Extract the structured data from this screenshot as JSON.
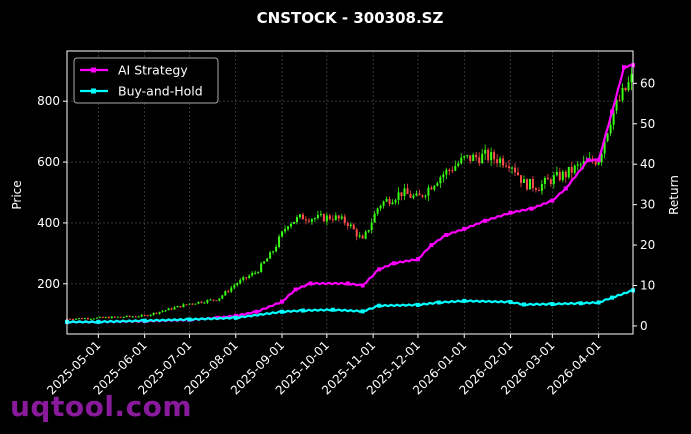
{
  "chart_data": {
    "type": "line",
    "title": "CNSTOCK - 300308.SZ",
    "ylabel_left": "Price",
    "ylabel_right": "Return",
    "x_ticks": [
      "2025-05-01",
      "2025-06-01",
      "2025-07-01",
      "2025-08-01",
      "2025-09-01",
      "2025-10-01",
      "2025-11-01",
      "2025-12-01",
      "2026-01-01",
      "2026-02-01",
      "2026-03-01",
      "2026-04-01"
    ],
    "y_left_ticks": [
      200,
      400,
      600,
      800
    ],
    "y_right_ticks": [
      0,
      10,
      20,
      30,
      40,
      50,
      60
    ],
    "xlim": [
      "2025-04-10",
      "2026-04-24"
    ],
    "ylim_left": [
      35,
      965
    ],
    "ylim_right": [
      -2,
      68
    ],
    "grid": true,
    "legend_position": "top-left",
    "candlestick": {
      "up_color": "#39ff14",
      "down_color": "#ff4d4d",
      "closes": [
        [
          "2025-04-10",
          85
        ],
        [
          "2025-05-01",
          88
        ],
        [
          "2025-05-20",
          92
        ],
        [
          "2025-06-01",
          95
        ],
        [
          "2025-06-20",
          120
        ],
        [
          "2025-07-01",
          135
        ],
        [
          "2025-07-20",
          150
        ],
        [
          "2025-08-01",
          200
        ],
        [
          "2025-08-15",
          240
        ],
        [
          "2025-08-25",
          300
        ],
        [
          "2025-09-05",
          400
        ],
        [
          "2025-09-15",
          420
        ],
        [
          "2025-09-25",
          415
        ],
        [
          "2025-10-05",
          420
        ],
        [
          "2025-10-15",
          400
        ],
        [
          "2025-10-25",
          340
        ],
        [
          "2025-11-05",
          460
        ],
        [
          "2025-11-20",
          500
        ],
        [
          "2025-12-01",
          480
        ],
        [
          "2025-12-15",
          550
        ],
        [
          "2026-01-01",
          610
        ],
        [
          "2026-01-15",
          620
        ],
        [
          "2026-02-01",
          600
        ],
        [
          "2026-02-10",
          530
        ],
        [
          "2026-02-20",
          520
        ],
        [
          "2026-03-01",
          545
        ],
        [
          "2026-03-10",
          560
        ],
        [
          "2026-03-20",
          590
        ],
        [
          "2026-04-01",
          610
        ],
        [
          "2026-04-10",
          760
        ],
        [
          "2026-04-24",
          880
        ]
      ]
    },
    "series": [
      {
        "name": "AI Strategy",
        "color": "#ff00ff",
        "points": [
          [
            "2025-04-10",
            1.0
          ],
          [
            "2025-05-01",
            1.0
          ],
          [
            "2025-06-01",
            1.2
          ],
          [
            "2025-07-01",
            1.5
          ],
          [
            "2025-07-20",
            2.0
          ],
          [
            "2025-08-01",
            2.5
          ],
          [
            "2025-08-15",
            3.5
          ],
          [
            "2025-09-01",
            6.0
          ],
          [
            "2025-09-10",
            9.0
          ],
          [
            "2025-09-20",
            10.5
          ],
          [
            "2025-10-15",
            10.5
          ],
          [
            "2025-10-25",
            10.0
          ],
          [
            "2025-11-05",
            14.0
          ],
          [
            "2025-11-15",
            15.5
          ],
          [
            "2025-12-01",
            16.5
          ],
          [
            "2025-12-10",
            20.0
          ],
          [
            "2025-12-20",
            22.5
          ],
          [
            "2026-01-01",
            24.0
          ],
          [
            "2026-01-15",
            26.0
          ],
          [
            "2026-02-01",
            28.0
          ],
          [
            "2026-02-15",
            29.0
          ],
          [
            "2026-03-01",
            31.0
          ],
          [
            "2026-03-10",
            34.0
          ],
          [
            "2026-03-25",
            41.0
          ],
          [
            "2026-04-01",
            41.0
          ],
          [
            "2026-04-10",
            53.0
          ],
          [
            "2026-04-18",
            64.0
          ],
          [
            "2026-04-24",
            64.5
          ]
        ]
      },
      {
        "name": "Buy-and-Hold",
        "color": "#00ffff",
        "points": [
          [
            "2025-04-10",
            1.0
          ],
          [
            "2025-05-01",
            1.0
          ],
          [
            "2025-06-01",
            1.3
          ],
          [
            "2025-07-01",
            1.6
          ],
          [
            "2025-08-01",
            2.0
          ],
          [
            "2025-09-01",
            3.5
          ],
          [
            "2025-09-15",
            3.8
          ],
          [
            "2025-10-05",
            4.0
          ],
          [
            "2025-10-25",
            3.6
          ],
          [
            "2025-11-05",
            5.0
          ],
          [
            "2025-12-01",
            5.2
          ],
          [
            "2025-12-15",
            5.8
          ],
          [
            "2026-01-01",
            6.2
          ],
          [
            "2026-02-01",
            5.9
          ],
          [
            "2026-02-10",
            5.3
          ],
          [
            "2026-03-01",
            5.4
          ],
          [
            "2026-03-20",
            5.6
          ],
          [
            "2026-04-01",
            5.8
          ],
          [
            "2026-04-10",
            7.0
          ],
          [
            "2026-04-24",
            8.8
          ]
        ]
      }
    ]
  },
  "watermark": "uqtool.com"
}
